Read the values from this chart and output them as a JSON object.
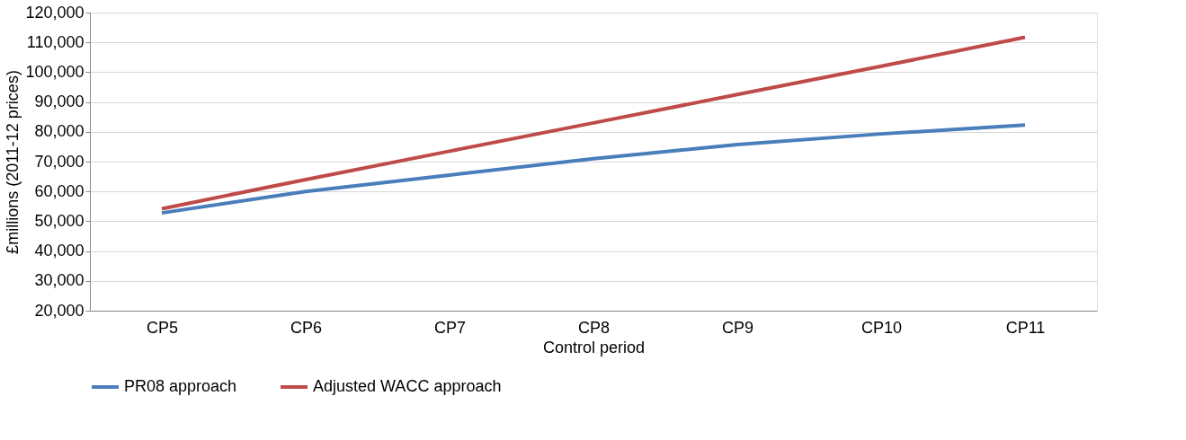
{
  "chart_data": {
    "type": "line",
    "xlabel": "Control period",
    "ylabel": "£millions (2011-12 prices)",
    "categories": [
      "CP5",
      "CP6",
      "CP7",
      "CP8",
      "CP9",
      "CP10",
      "CP11"
    ],
    "series": [
      {
        "name": "PR08 approach",
        "color": "#4a7ebb",
        "values": [
          52800,
          60000,
          65500,
          71000,
          75700,
          79300,
          82300
        ]
      },
      {
        "name": "Adjusted WACC approach",
        "color": "#be4b48",
        "values": [
          54200,
          64000,
          73500,
          83000,
          92500,
          102000,
          111700
        ]
      }
    ],
    "ylim": [
      20000,
      120000
    ],
    "yticks": [
      {
        "value": 20000,
        "label": "20,000"
      },
      {
        "value": 30000,
        "label": "30,000"
      },
      {
        "value": 40000,
        "label": "40,000"
      },
      {
        "value": 50000,
        "label": "50,000"
      },
      {
        "value": 60000,
        "label": "60,000"
      },
      {
        "value": 70000,
        "label": "70,000"
      },
      {
        "value": 80000,
        "label": "80,000"
      },
      {
        "value": 90000,
        "label": "90,000"
      },
      {
        "value": 100000,
        "label": "100,000"
      },
      {
        "value": 110000,
        "label": "110,000"
      },
      {
        "value": 120000,
        "label": "120,000"
      }
    ],
    "grid": "y",
    "legend": "bottom",
    "marker": "none",
    "line_style": "solid"
  }
}
